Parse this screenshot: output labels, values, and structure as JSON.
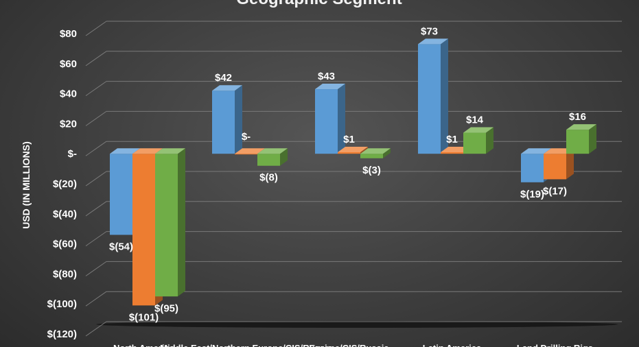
{
  "chart_data": {
    "type": "bar",
    "title": "Geographic Segment",
    "ylabel": "USD (IN MILLIONS)",
    "xlabel": "",
    "ylim": [
      -120,
      80
    ],
    "yticks": [
      {
        "value": 80,
        "label": "$80"
      },
      {
        "value": 60,
        "label": "$60"
      },
      {
        "value": 40,
        "label": "$40"
      },
      {
        "value": 20,
        "label": "$20"
      },
      {
        "value": 0,
        "label": "$-"
      },
      {
        "value": -20,
        "label": "$(20)"
      },
      {
        "value": -40,
        "label": "$(40)"
      },
      {
        "value": -60,
        "label": "$(60)"
      },
      {
        "value": -80,
        "label": "$(80)"
      },
      {
        "value": -100,
        "label": "$(100)"
      },
      {
        "value": -120,
        "label": "$(120)"
      }
    ],
    "categories": [
      "North America",
      "Middle East/Northern Europe/CIS/Russia",
      "Europe/CIS/Russia",
      "Latin America",
      "Land Drilling Rigs"
    ],
    "grid": true,
    "legend": "none",
    "series": [
      {
        "color": "#5b9bd5",
        "values": [
          -54,
          42,
          43,
          73,
          -19
        ],
        "labels": [
          "$(54)",
          "$42",
          "$43",
          "$73",
          "$(19)"
        ]
      },
      {
        "color": "#ed7d31",
        "values": [
          -101,
          0,
          1,
          1,
          -17
        ],
        "labels": [
          "$(101)",
          "$-",
          "$1",
          "$1",
          "$(17)"
        ]
      },
      {
        "color": "#70ad47",
        "values": [
          -95,
          -8,
          -3,
          14,
          16
        ],
        "labels": [
          "$(95)",
          "$(8)",
          "$(3)",
          "$14",
          "$16"
        ]
      }
    ]
  }
}
